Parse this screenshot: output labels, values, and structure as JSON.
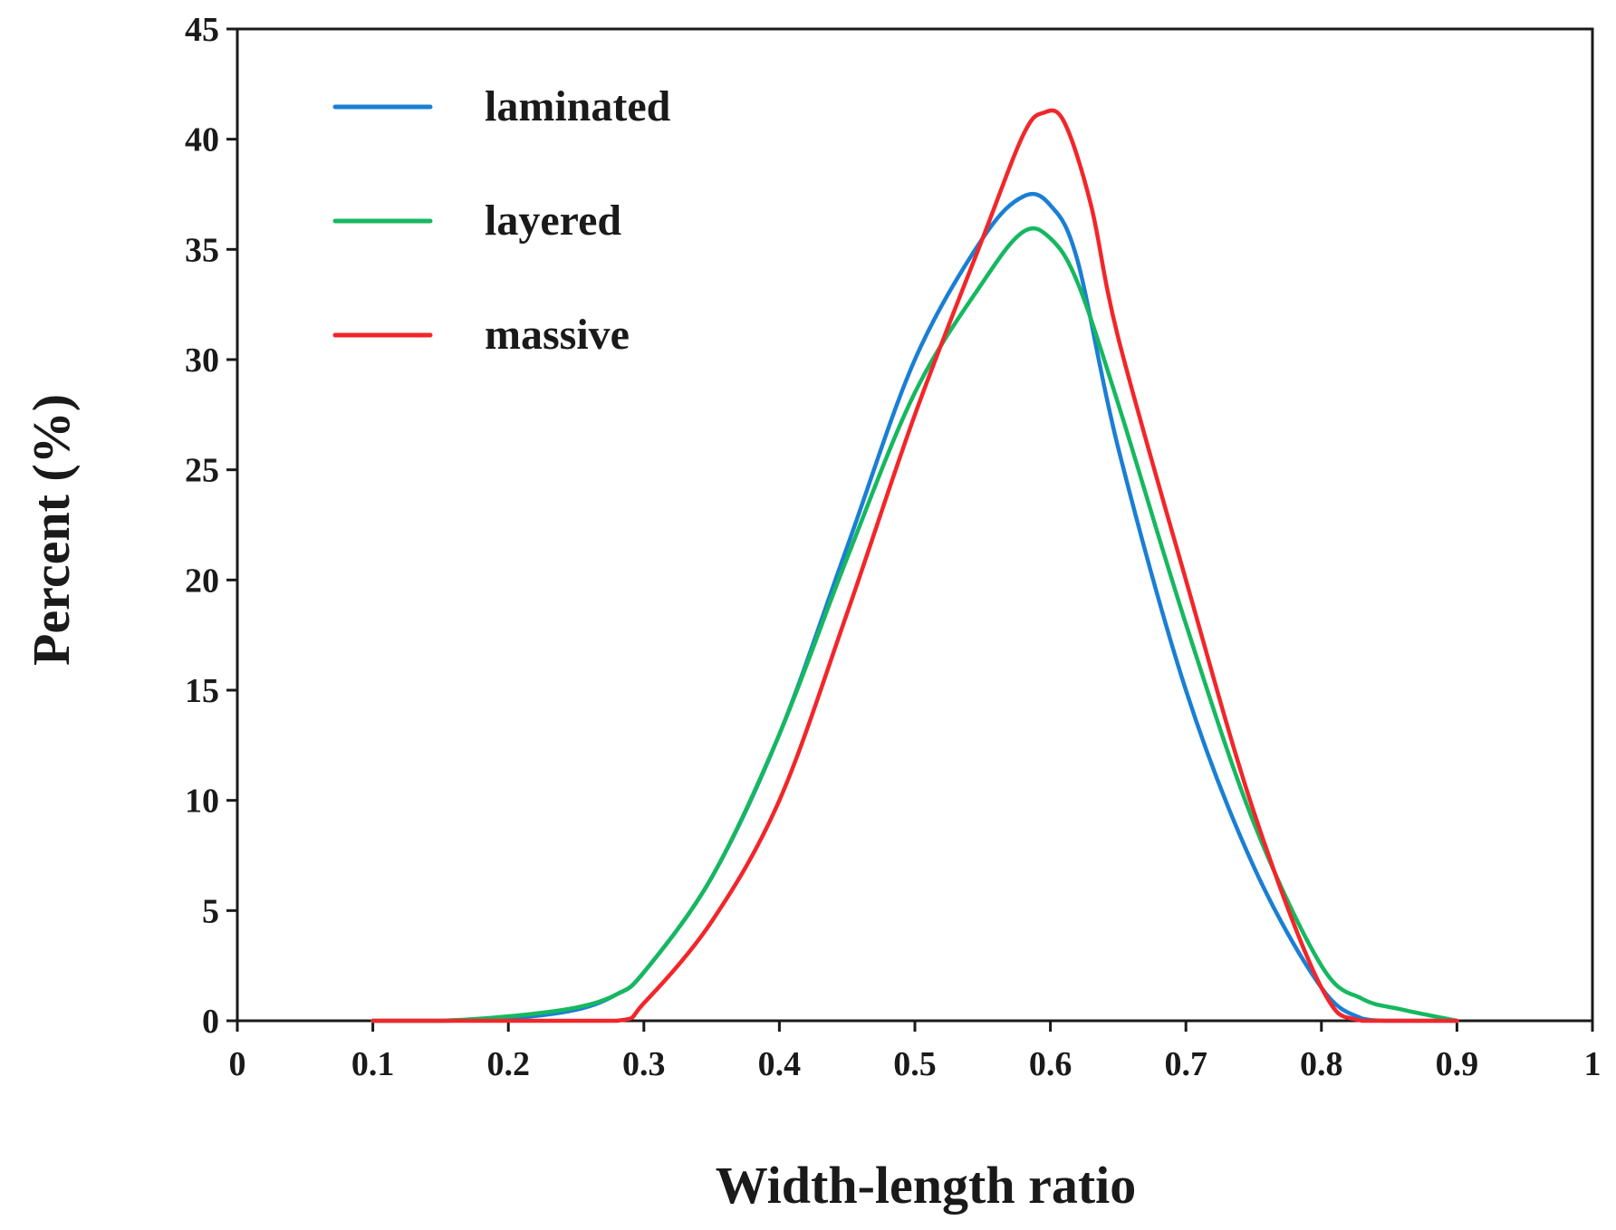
{
  "chart_data": {
    "type": "line",
    "title": "",
    "xlabel": "Width-length ratio",
    "ylabel": "Percent (%)",
    "xlim": [
      0,
      1
    ],
    "ylim": [
      0,
      45
    ],
    "x_ticks": [
      "0",
      "0.1",
      "0.2",
      "0.3",
      "0.4",
      "0.5",
      "0.6",
      "0.7",
      "0.8",
      "0.9",
      "1"
    ],
    "y_ticks": [
      "0",
      "5",
      "10",
      "15",
      "20",
      "25",
      "30",
      "35",
      "40",
      "45"
    ],
    "grid": false,
    "legend_position": "top-left",
    "series": [
      {
        "name": "laminated",
        "color": "#1a7fd4",
        "points": [
          [
            0.1,
            0
          ],
          [
            0.15,
            0
          ],
          [
            0.2,
            0.1
          ],
          [
            0.25,
            0.5
          ],
          [
            0.28,
            1.2
          ],
          [
            0.3,
            2.2
          ],
          [
            0.35,
            6.5
          ],
          [
            0.4,
            13
          ],
          [
            0.45,
            21.5
          ],
          [
            0.5,
            30
          ],
          [
            0.55,
            35.5
          ],
          [
            0.58,
            37.4
          ],
          [
            0.6,
            37
          ],
          [
            0.62,
            34.5
          ],
          [
            0.65,
            26
          ],
          [
            0.7,
            15
          ],
          [
            0.75,
            7
          ],
          [
            0.8,
            1.5
          ],
          [
            0.83,
            0.1
          ],
          [
            0.85,
            0
          ],
          [
            0.9,
            0
          ]
        ]
      },
      {
        "name": "layered",
        "color": "#16b85f",
        "points": [
          [
            0.1,
            0
          ],
          [
            0.15,
            0
          ],
          [
            0.2,
            0.2
          ],
          [
            0.25,
            0.6
          ],
          [
            0.28,
            1.2
          ],
          [
            0.3,
            2.2
          ],
          [
            0.35,
            6.5
          ],
          [
            0.4,
            13
          ],
          [
            0.45,
            21
          ],
          [
            0.5,
            28.5
          ],
          [
            0.55,
            33.5
          ],
          [
            0.58,
            35.8
          ],
          [
            0.6,
            35.5
          ],
          [
            0.62,
            33.5
          ],
          [
            0.65,
            28
          ],
          [
            0.7,
            18
          ],
          [
            0.75,
            9
          ],
          [
            0.8,
            2.5
          ],
          [
            0.83,
            1
          ],
          [
            0.86,
            0.5
          ],
          [
            0.9,
            0
          ]
        ]
      },
      {
        "name": "massive",
        "color": "#f2262a",
        "points": [
          [
            0.1,
            0
          ],
          [
            0.2,
            0
          ],
          [
            0.28,
            0
          ],
          [
            0.3,
            0.8
          ],
          [
            0.35,
            4.5
          ],
          [
            0.4,
            10
          ],
          [
            0.45,
            18.5
          ],
          [
            0.5,
            27.5
          ],
          [
            0.55,
            35.5
          ],
          [
            0.58,
            40.2
          ],
          [
            0.595,
            41.2
          ],
          [
            0.61,
            40.8
          ],
          [
            0.63,
            37
          ],
          [
            0.65,
            31
          ],
          [
            0.7,
            20
          ],
          [
            0.75,
            9.5
          ],
          [
            0.8,
            1.5
          ],
          [
            0.83,
            0
          ],
          [
            0.9,
            0
          ]
        ]
      }
    ]
  }
}
